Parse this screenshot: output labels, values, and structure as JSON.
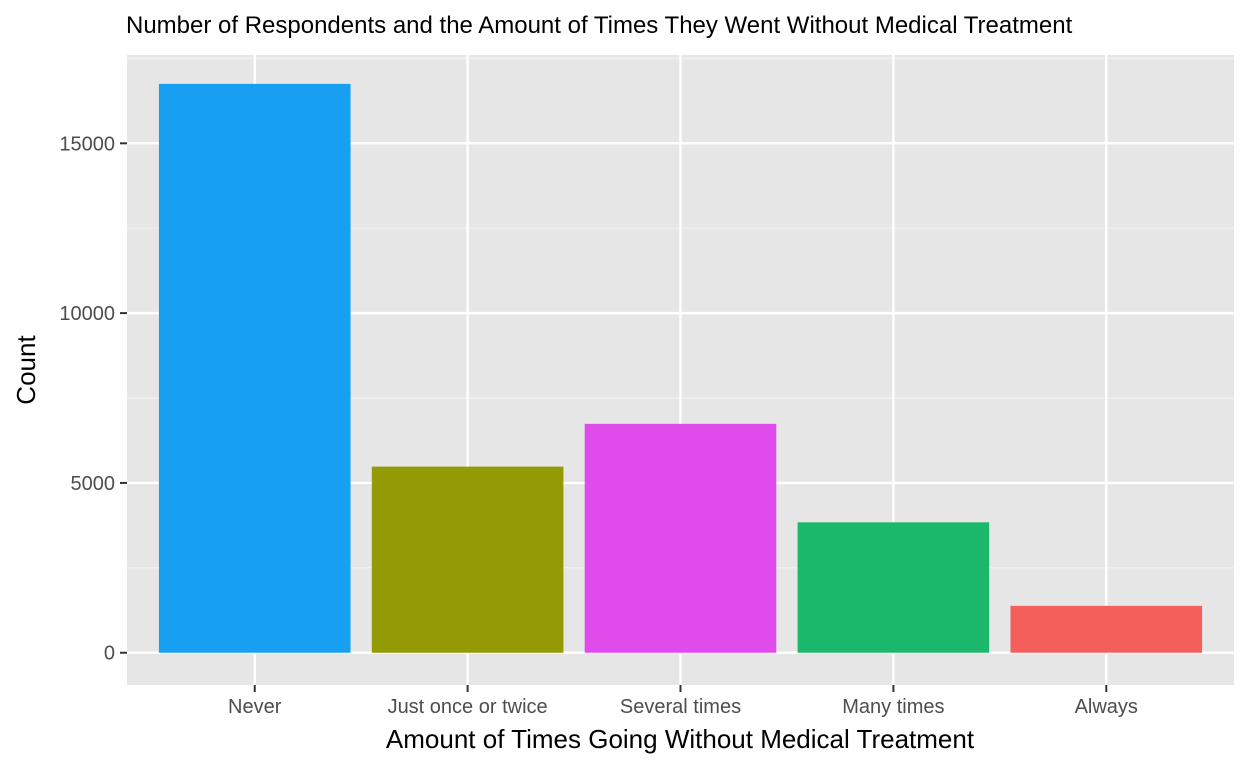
{
  "chart_data": {
    "type": "bar",
    "title": "Number of Respondents and the Amount of Times They Went Without Medical Treatment",
    "xlabel": "Amount of Times Going Without Medical Treatment",
    "ylabel": "Count",
    "categories": [
      "Never",
      "Just once or twice",
      "Several times",
      "Many times",
      "Always"
    ],
    "values": [
      16750,
      5480,
      6740,
      3840,
      1380
    ],
    "colors": [
      "#179ff1",
      "#949a03",
      "#e04ceb",
      "#1bb76a",
      "#f45f5c"
    ],
    "ylim": [
      -950,
      17600
    ],
    "yticks": [
      0,
      5000,
      10000,
      15000
    ],
    "ytick_labels": [
      "0",
      "5000",
      "10000",
      "15000"
    ],
    "panel_background": "#e6e6e6",
    "grid": true,
    "legend": "none"
  }
}
